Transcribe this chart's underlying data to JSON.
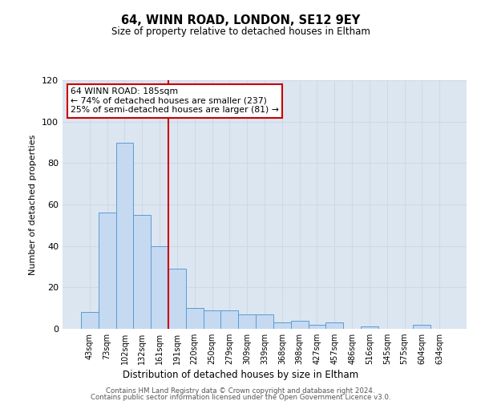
{
  "title": "64, WINN ROAD, LONDON, SE12 9EY",
  "subtitle": "Size of property relative to detached houses in Eltham",
  "xlabel": "Distribution of detached houses by size in Eltham",
  "ylabel": "Number of detached properties",
  "categories": [
    "43sqm",
    "73sqm",
    "102sqm",
    "132sqm",
    "161sqm",
    "191sqm",
    "220sqm",
    "250sqm",
    "279sqm",
    "309sqm",
    "339sqm",
    "368sqm",
    "398sqm",
    "427sqm",
    "457sqm",
    "486sqm",
    "516sqm",
    "545sqm",
    "575sqm",
    "604sqm",
    "634sqm"
  ],
  "values": [
    8,
    56,
    90,
    55,
    40,
    29,
    10,
    9,
    9,
    7,
    7,
    3,
    4,
    2,
    3,
    0,
    1,
    0,
    0,
    2,
    0
  ],
  "bar_color": "#c5d9f1",
  "bar_edge_color": "#5b9bd5",
  "bar_width": 1.0,
  "ylim": [
    0,
    120
  ],
  "yticks": [
    0,
    20,
    40,
    60,
    80,
    100,
    120
  ],
  "vline_idx": 5,
  "vline_color": "#cc0000",
  "annotation_line1": "64 WINN ROAD: 185sqm",
  "annotation_line2": "← 74% of detached houses are smaller (237)",
  "annotation_line3": "25% of semi-detached houses are larger (81) →",
  "annotation_box_color": "#ffffff",
  "annotation_box_edge_color": "#cc0000",
  "grid_color": "#d0d8e8",
  "bg_color": "#dce6f1",
  "footer_line1": "Contains HM Land Registry data © Crown copyright and database right 2024.",
  "footer_line2": "Contains public sector information licensed under the Open Government Licence v3.0."
}
